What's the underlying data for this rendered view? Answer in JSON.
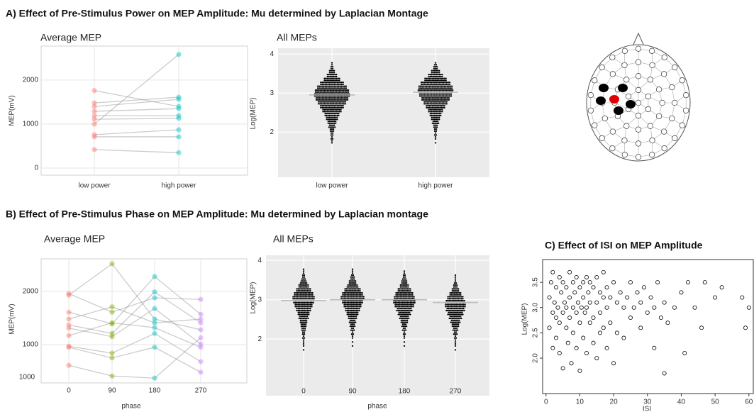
{
  "headings": [
    "A) Effect of Pre-Stimulus Power on MEP Amplitude: Mu determined by Laplacian Montage",
    "B) Effect of Pre-Stimulus Phase on MEP Amplitude: Mu determined by Laplacian montage"
  ],
  "chart_data": [
    {
      "type": "slope",
      "title": "Average MEP",
      "y_label": "MEP(mV)",
      "categories": [
        "low power",
        "high power"
      ],
      "colors": [
        "#f8766d",
        "#00bfc4"
      ],
      "values": [
        [
          1760,
          1400
        ],
        [
          1480,
          1610
        ],
        [
          1400,
          1560
        ],
        [
          1290,
          1350
        ],
        [
          1190,
          1190
        ],
        [
          1110,
          1130
        ],
        [
          1000,
          2580
        ],
        [
          760,
          870
        ],
        [
          710,
          710
        ],
        [
          420,
          350
        ]
      ],
      "ylim": [
        -160,
        2770
      ],
      "yticks": [
        0,
        1000,
        2000
      ],
      "grid": true
    },
    {
      "type": "swarm",
      "title": "All MEPs",
      "y_label": "Log(MEP)",
      "categories": [
        "low power",
        "high power"
      ],
      "color": "#000000",
      "median_color": "#bdbdbd",
      "bins": [
        1.7,
        1.8,
        1.9,
        2.0,
        2.1,
        2.2,
        2.3,
        2.4,
        2.5,
        2.6,
        2.7,
        2.8,
        2.9,
        3.0,
        3.1,
        3.2,
        3.3,
        3.4,
        3.5,
        3.6,
        3.7,
        3.8
      ],
      "counts": [
        [
          2,
          3,
          4,
          6,
          9,
          12,
          16,
          20,
          26,
          32,
          38,
          44,
          48,
          46,
          40,
          32,
          22,
          14,
          8,
          4,
          2
        ],
        [
          1,
          2,
          3,
          4,
          6,
          9,
          12,
          16,
          20,
          26,
          32,
          38,
          44,
          48,
          46,
          40,
          30,
          20,
          12,
          6,
          3
        ]
      ],
      "medians": [
        2.95,
        3.02
      ],
      "ylim": [
        0.84,
        4.15
      ],
      "yticks": [
        2,
        3,
        4
      ],
      "grid": true
    },
    {
      "type": "slope",
      "title": "Average MEP",
      "x_label": "phase",
      "y_label": "MEP(mV)",
      "categories": [
        "0",
        "90",
        "180",
        "270"
      ],
      "colors": [
        "#f8766d",
        "#7cae00",
        "#00bfc4",
        "#c77cff"
      ],
      "values": [
        [
          1960,
          1610,
          1880,
          1850
        ],
        [
          1930,
          2520,
          1480,
          1280
        ],
        [
          1610,
          1390,
          2280,
          1570
        ],
        [
          1480,
          1710,
          1410,
          1480
        ],
        [
          1370,
          1210,
          1990,
          1410
        ],
        [
          1310,
          1150,
          1680,
          1010
        ],
        [
          1170,
          1410,
          1320,
          950
        ],
        [
          970,
          840,
          1210,
          680
        ],
        [
          950,
          750,
          950,
          480
        ],
        [
          610,
          410,
          370,
          1130
        ]
      ],
      "ylim": [
        280,
        2613
      ],
      "yticks": [
        1000,
        2000
      ],
      "annotation": "1000",
      "grid": true
    },
    {
      "type": "swarm",
      "title": "All MEPs",
      "x_label": "phase",
      "y_label": "Log(MEP)",
      "categories": [
        "0",
        "90",
        "180",
        "270"
      ],
      "color": "#000000",
      "median_color": "#bdbdbd",
      "bins": [
        1.7,
        1.8,
        1.9,
        2.0,
        2.1,
        2.2,
        2.3,
        2.4,
        2.5,
        2.6,
        2.7,
        2.8,
        2.9,
        3.0,
        3.1,
        3.2,
        3.3,
        3.4,
        3.5,
        3.6,
        3.7,
        3.8
      ],
      "counts": [
        [
          1,
          2,
          2,
          3,
          4,
          6,
          8,
          10,
          13,
          16,
          20,
          24,
          28,
          30,
          26,
          20,
          14,
          9,
          5,
          3,
          2
        ],
        [
          0,
          1,
          1,
          2,
          3,
          5,
          7,
          9,
          12,
          16,
          20,
          24,
          28,
          32,
          28,
          22,
          15,
          10,
          6,
          3,
          2
        ],
        [
          0,
          1,
          1,
          2,
          3,
          5,
          7,
          10,
          13,
          17,
          21,
          26,
          30,
          28,
          24,
          18,
          12,
          8,
          5,
          3,
          1
        ],
        [
          1,
          2,
          2,
          3,
          5,
          7,
          10,
          13,
          17,
          21,
          25,
          28,
          27,
          22,
          16,
          10,
          6,
          3,
          2,
          1,
          0
        ]
      ],
      "medians": [
        2.98,
        3.0,
        3.0,
        2.93
      ],
      "ylim": [
        0.56,
        4.13
      ],
      "yticks": [
        2,
        3,
        4
      ],
      "grid": true
    },
    {
      "type": "scatter",
      "title": "C) Effect of ISI  on MEP  Amplitude",
      "x_label": "ISI",
      "y_label": "Log(MEP)",
      "color": "#000000",
      "x": [
        1,
        1,
        1.5,
        2,
        2,
        2,
        2.5,
        3,
        3,
        3,
        3.5,
        4,
        4,
        4,
        4.5,
        5,
        5,
        5,
        5.5,
        6,
        6,
        6,
        6.5,
        7,
        7,
        7,
        7.5,
        8,
        8,
        8,
        8.5,
        9,
        9,
        9,
        9.5,
        10,
        10,
        10,
        10.5,
        11,
        11,
        11,
        11.5,
        12,
        12,
        12,
        12.5,
        13,
        13,
        13,
        14,
        14,
        14,
        15,
        15,
        15,
        16,
        16,
        16,
        17,
        17,
        17,
        18,
        18,
        18,
        19,
        19,
        20,
        20,
        21,
        21,
        22,
        23,
        23,
        24,
        25,
        25,
        26,
        27,
        28,
        28,
        29,
        30,
        31,
        32,
        32,
        33,
        34,
        35,
        35,
        36,
        38,
        40,
        41,
        42,
        44,
        46,
        47,
        50,
        52,
        58,
        59,
        60
      ],
      "values": [
        3.2,
        2.6,
        3.5,
        2.9,
        3.7,
        2.2,
        3.1,
        3.4,
        2.8,
        2.4,
        3.0,
        3.6,
        2.7,
        2.1,
        3.3,
        3.5,
        2.9,
        1.8,
        3.1,
        3.4,
        2.6,
        3.0,
        2.3,
        3.7,
        3.2,
        2.8,
        1.9,
        3.5,
        3.0,
        2.5,
        3.3,
        3.6,
        2.9,
        2.2,
        3.1,
        3.4,
        2.7,
        1.75,
        3.0,
        3.5,
        3.2,
        2.4,
        2.9,
        3.6,
        3.0,
        2.1,
        3.3,
        3.5,
        2.7,
        3.1,
        3.4,
        2.8,
        2.3,
        3.6,
        3.1,
        2.0,
        3.3,
        2.9,
        2.5,
        3.2,
        3.7,
        2.6,
        3.4,
        3.0,
        2.2,
        3.2,
        2.7,
        3.5,
        1.9,
        3.1,
        2.5,
        3.3,
        3.0,
        2.4,
        3.2,
        3.5,
        2.8,
        3.0,
        3.3,
        2.6,
        3.1,
        3.4,
        2.9,
        3.2,
        3.0,
        2.2,
        3.5,
        2.8,
        3.1,
        1.7,
        2.7,
        3.0,
        3.3,
        2.1,
        3.5,
        3.0,
        2.6,
        3.5,
        3.2,
        3.4,
        3.2,
        2.6,
        3.0
      ],
      "xlim": [
        -1,
        61.3
      ],
      "ylim": [
        1.3,
        3.95
      ],
      "xticks": [
        0,
        10,
        20,
        30,
        40,
        50,
        60
      ],
      "yticks": [
        {
          "value": 2,
          "label": "2.0"
        },
        2.5,
        {
          "value": 3,
          "label": "3.0"
        },
        3.5
      ]
    }
  ]
}
